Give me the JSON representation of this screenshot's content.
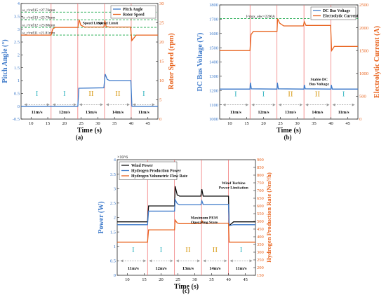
{
  "figure": {
    "panels": [
      "(a)",
      "(b)",
      "(c)"
    ]
  },
  "colors": {
    "blue": "#3b78c9",
    "orange": "#e8621c",
    "black": "#111111",
    "green_dash": "#1aa84a",
    "red_vline": "#ef6a6a",
    "regime_I": "#39b7c2",
    "regime_II": "#d89c18",
    "arrow_gray": "#9a9a9a"
  },
  "chart_data": [
    {
      "panel": "(a)",
      "type": "line",
      "xlabel": "Time (s)",
      "ylabel_left": "Pitch Angle (°)",
      "ylabel_right": "Rotor Speed (rpm)",
      "xlim": [
        7,
        48
      ],
      "ylim_left": [
        -0.5,
        4
      ],
      "ylim_right": [
        0,
        30
      ],
      "xticks": [
        10,
        15,
        20,
        25,
        30,
        35,
        40,
        45
      ],
      "yticks_left": [
        "-0.5",
        "0",
        "0.5",
        "1",
        "1.5",
        "2",
        "2.5",
        "3",
        "3.5",
        "4"
      ],
      "yticks_right": [
        "0",
        "5",
        "10",
        "15",
        "20",
        "25",
        "30"
      ],
      "legend": [
        "Pitch Angle",
        "Rotor Speed"
      ],
      "legend_position": "top-right",
      "series": [
        {
          "name": "Pitch Angle",
          "axis": "left",
          "color": "blue",
          "points": [
            [
              7,
              0
            ],
            [
              24.0,
              0
            ],
            [
              24.3,
              0.7
            ],
            [
              31.8,
              0.72
            ],
            [
              32.2,
              1.25
            ],
            [
              32.8,
              1.05
            ],
            [
              33.5,
              1.0
            ],
            [
              39.9,
              1.0
            ],
            [
              40.2,
              0
            ],
            [
              48,
              0
            ]
          ]
        },
        {
          "name": "Rotor Speed",
          "axis": "right",
          "color": "orange",
          "points": [
            [
              7,
              21.8
            ],
            [
              16.0,
              21.8
            ],
            [
              16.5,
              23.4
            ],
            [
              17.2,
              23.8
            ],
            [
              24.0,
              23.8
            ],
            [
              24.4,
              25.8
            ],
            [
              24.9,
              24.4
            ],
            [
              26.0,
              23.9
            ],
            [
              31.8,
              23.9
            ],
            [
              32.1,
              25.6
            ],
            [
              32.5,
              24.0
            ],
            [
              33.5,
              23.9
            ],
            [
              39.8,
              23.9
            ],
            [
              40.2,
              20.4
            ],
            [
              41.5,
              21.8
            ],
            [
              48,
              21.8
            ]
          ]
        }
      ],
      "reference_lines": [
        {
          "label": "ω_r^ref|15 =27.76rpm",
          "value": 27.76
        },
        {
          "label": "ω_r^ref|13 =25.78rpm",
          "value": 25.78
        },
        {
          "label": "ω_r^ref|12 =23.80rpm",
          "value": 23.8
        },
        {
          "label": "ω_r^ref|11 =21.81rpm",
          "value": 21.81
        }
      ],
      "annotations": [
        {
          "text": "Speed Limit",
          "x": 28.5,
          "y": 24.6
        },
        {
          "text": "Speed Limit",
          "x": 33.0,
          "y": 24.6
        }
      ],
      "vlines": [
        16,
        24,
        32,
        40
      ],
      "regimes": [
        "I",
        "I",
        "II",
        "II",
        "I"
      ],
      "wind_speeds": [
        "11m/s",
        "12m/s",
        "13m/s",
        "14m/s",
        "11m/s"
      ]
    },
    {
      "panel": "(b)",
      "type": "line",
      "xlabel": "Time (s)",
      "ylabel_left": "DC Bus Voltage (V)",
      "ylabel_right": "Electrolytic Current (A)",
      "xlim": [
        7,
        48
      ],
      "ylim_left": [
        1000,
        1800
      ],
      "ylim_right": [
        0,
        2500
      ],
      "xticks": [
        10,
        15,
        20,
        25,
        30,
        35,
        40,
        45
      ],
      "yticks_left": [
        "1000",
        "1100",
        "1200",
        "1300",
        "1400",
        "1500",
        "1600",
        "1700",
        "1800"
      ],
      "yticks_right": [
        "0",
        "500",
        "1000",
        "1500",
        "2000",
        "2500"
      ],
      "legend": [
        "DC Bus Voltage",
        "Electrolytic Current"
      ],
      "legend_position": "top-right",
      "series": [
        {
          "name": "DC Bus Voltage",
          "axis": "left",
          "color": "blue",
          "points": [
            [
              7,
              1210
            ],
            [
              16.0,
              1210
            ],
            [
              16.1,
              1255
            ],
            [
              16.4,
              1212
            ],
            [
              24.0,
              1210
            ],
            [
              24.1,
              1255
            ],
            [
              24.4,
              1212
            ],
            [
              32.0,
              1210
            ],
            [
              32.1,
              1240
            ],
            [
              32.4,
              1212
            ],
            [
              40.0,
              1210
            ],
            [
              40.1,
              1240
            ],
            [
              40.4,
              1210
            ],
            [
              48,
              1210
            ]
          ]
        },
        {
          "name": "Electrolytic Current",
          "axis": "right",
          "color": "orange",
          "points": [
            [
              7,
              1500
            ],
            [
              16.0,
              1500
            ],
            [
              16.3,
              1850
            ],
            [
              17.0,
              1920
            ],
            [
              24.0,
              1920
            ],
            [
              24.2,
              2200
            ],
            [
              24.8,
              2100
            ],
            [
              26.0,
              2040
            ],
            [
              31.8,
              2040
            ],
            [
              32.1,
              2130
            ],
            [
              32.6,
              2050
            ],
            [
              39.9,
              2050
            ],
            [
              40.2,
              1500
            ],
            [
              41.0,
              1590
            ],
            [
              48,
              1590
            ]
          ]
        }
      ],
      "reference_lines": [
        {
          "label": "I^max_elec=2200A",
          "axis": "right",
          "value": 2200
        }
      ],
      "annotations": [
        {
          "text": "Stable DC Bus Voltage",
          "x": 36.5,
          "y": 1270
        }
      ],
      "vlines": [
        16,
        24,
        32,
        40
      ],
      "regimes": [
        "I",
        "I",
        "II",
        "II",
        "I"
      ],
      "wind_speeds": [
        "11m/s",
        "12m/s",
        "13m/s",
        "14m/s",
        "11m/s"
      ]
    },
    {
      "panel": "(c)",
      "type": "line",
      "xlabel": "Time (s)",
      "ylabel_left": "Power (W)",
      "ylabel_right": "Hydrogen Production Rate (Nm³/h)",
      "y_multiplier": "×10^6",
      "xlim": [
        7,
        48
      ],
      "ylim_left": [
        0,
        4
      ],
      "ylim_right": [
        150,
        900
      ],
      "xticks": [
        10,
        15,
        20,
        25,
        30,
        35,
        40,
        45
      ],
      "yticks_left": [
        "0",
        "0.5",
        "1",
        "1.5",
        "2",
        "2.5",
        "3",
        "3.5",
        "4"
      ],
      "yticks_right": [
        "150",
        "200",
        "250",
        "300",
        "350",
        "400",
        "450",
        "500",
        "550",
        "600",
        "650",
        "700",
        "750",
        "800",
        "850",
        "900"
      ],
      "legend": [
        "Wind Power",
        "Hydrogen Production Power",
        "Hydrogen Volumetric Flow Rate"
      ],
      "legend_position": "top-left",
      "series": [
        {
          "name": "Wind Power",
          "axis": "left",
          "color": "black",
          "points": [
            [
              7,
              1.85
            ],
            [
              16.0,
              1.85
            ],
            [
              16.3,
              2.4
            ],
            [
              24.0,
              2.4
            ],
            [
              24.2,
              3.08
            ],
            [
              24.8,
              2.78
            ],
            [
              25.5,
              2.74
            ],
            [
              31.8,
              2.74
            ],
            [
              32.1,
              2.98
            ],
            [
              32.5,
              2.74
            ],
            [
              40.0,
              2.74
            ],
            [
              40.2,
              1.72
            ],
            [
              41.5,
              1.85
            ],
            [
              48,
              1.85
            ]
          ]
        },
        {
          "name": "Hydrogen Production Power",
          "axis": "left",
          "color": "blue",
          "points": [
            [
              7,
              1.75
            ],
            [
              16.0,
              1.75
            ],
            [
              16.3,
              2.22
            ],
            [
              24.0,
              2.22
            ],
            [
              24.2,
              2.62
            ],
            [
              24.8,
              2.48
            ],
            [
              25.5,
              2.44
            ],
            [
              31.8,
              2.44
            ],
            [
              32.1,
              2.58
            ],
            [
              32.5,
              2.45
            ],
            [
              40.0,
              2.45
            ],
            [
              40.2,
              1.72
            ],
            [
              41.5,
              1.75
            ],
            [
              48,
              1.75
            ]
          ]
        },
        {
          "name": "Hydrogen Volumetric Flow Rate",
          "axis": "right",
          "color": "orange",
          "points": [
            [
              7,
              365
            ],
            [
              16.0,
              365
            ],
            [
              16.3,
              445
            ],
            [
              24.0,
              445
            ],
            [
              24.2,
              508
            ],
            [
              24.8,
              490
            ],
            [
              25.5,
              485
            ],
            [
              31.8,
              485
            ],
            [
              32.1,
              505
            ],
            [
              32.5,
              488
            ],
            [
              40.0,
              488
            ],
            [
              40.2,
              365
            ],
            [
              48,
              365
            ]
          ]
        }
      ],
      "annotations": [
        {
          "text": "Wind Turbine Power Limitation",
          "x": 41.5,
          "y": 3.15
        },
        {
          "text": "Maximum PEM Operating State",
          "x": 32.8,
          "y": 1.95
        }
      ],
      "vlines": [
        16,
        24,
        32,
        40
      ],
      "regimes": [
        "I",
        "I",
        "II",
        "II",
        "I"
      ],
      "wind_speeds": [
        "11m/s",
        "12m/s",
        "13m/s",
        "14m/s",
        "11m/s"
      ]
    }
  ]
}
